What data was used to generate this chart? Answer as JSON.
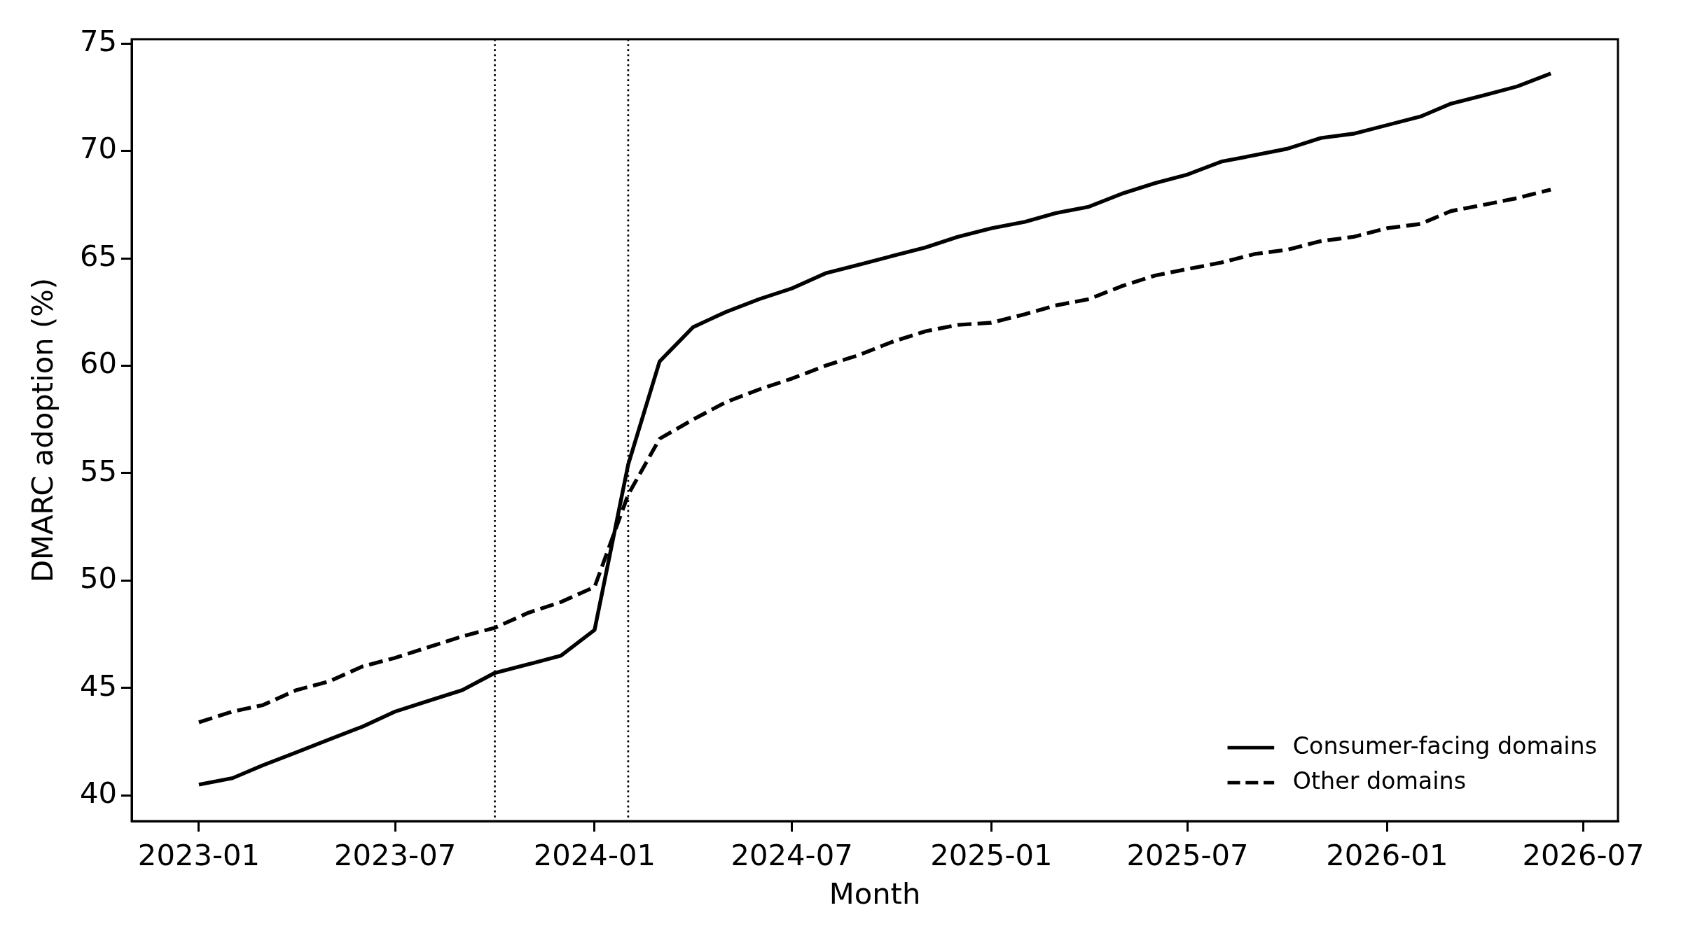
{
  "chart_data": {
    "type": "line",
    "xlabel": "Month",
    "ylabel": "DMARC adoption (%)",
    "x": [
      "2023-01",
      "2023-02",
      "2023-03",
      "2023-04",
      "2023-05",
      "2023-06",
      "2023-07",
      "2023-08",
      "2023-09",
      "2023-10",
      "2023-11",
      "2023-12",
      "2024-01",
      "2024-02",
      "2024-03",
      "2024-04",
      "2024-05",
      "2024-06",
      "2024-07",
      "2024-08",
      "2024-09",
      "2024-10",
      "2024-11",
      "2024-12",
      "2025-01",
      "2025-02",
      "2025-03",
      "2025-04",
      "2025-05",
      "2025-06",
      "2025-07",
      "2025-08",
      "2025-09",
      "2025-10",
      "2025-11",
      "2025-12",
      "2026-01",
      "2026-02",
      "2026-03",
      "2026-04",
      "2026-05",
      "2026-06"
    ],
    "series": [
      {
        "name": "Consumer-facing domains",
        "color": "#000000",
        "line_style": "solid",
        "values": [
          40.5,
          40.8,
          41.4,
          42.0,
          42.6,
          43.2,
          43.9,
          44.4,
          44.9,
          45.7,
          46.1,
          46.5,
          47.7,
          55.4,
          60.2,
          61.8,
          62.5,
          63.1,
          63.6,
          64.3,
          64.7,
          65.1,
          65.5,
          66.0,
          66.4,
          66.7,
          67.1,
          67.4,
          68.0,
          68.5,
          68.9,
          69.5,
          69.8,
          70.1,
          70.6,
          70.8,
          71.2,
          71.6,
          72.2,
          72.6,
          73.0,
          73.6
        ]
      },
      {
        "name": "Other domains",
        "color": "#000000",
        "line_style": "dashed",
        "values": [
          43.4,
          43.9,
          44.2,
          44.9,
          45.3,
          46.0,
          46.4,
          46.9,
          47.4,
          47.8,
          48.5,
          49.0,
          49.7,
          54.0,
          56.6,
          57.5,
          58.3,
          58.9,
          59.4,
          60.0,
          60.5,
          61.1,
          61.6,
          61.9,
          62.0,
          62.4,
          62.8,
          63.1,
          63.7,
          64.2,
          64.5,
          64.8,
          65.2,
          65.4,
          65.8,
          66.0,
          66.4,
          66.6,
          67.2,
          67.5,
          67.8,
          68.2
        ]
      }
    ],
    "xlim": [
      "2022-10-31",
      "2026-08-02"
    ],
    "xticks": [
      "2023-01",
      "2023-07",
      "2024-01",
      "2024-07",
      "2025-01",
      "2025-07",
      "2026-01",
      "2026-07"
    ],
    "ylim": [
      38.8,
      75.2
    ],
    "yticks": [
      40,
      45,
      50,
      55,
      60,
      65,
      70,
      75
    ],
    "ref_lines": [
      {
        "axis": "x",
        "value": "2023-10",
        "line_style": "dotted",
        "color": "#000000"
      },
      {
        "axis": "x",
        "value": "2024-02",
        "line_style": "dotted",
        "color": "#000000"
      }
    ],
    "legend": "bottom right"
  }
}
